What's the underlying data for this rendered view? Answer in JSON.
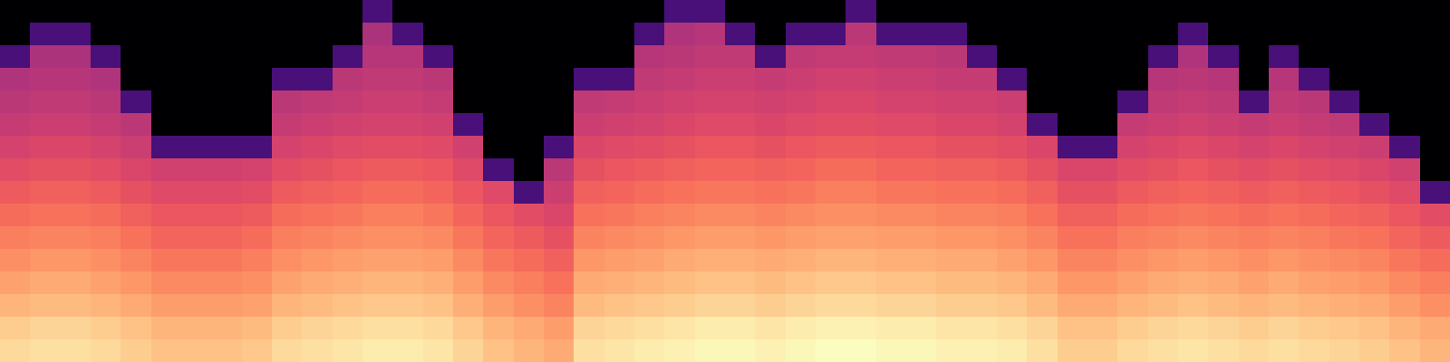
{
  "chart_data": {
    "type": "heatmap",
    "color": "magma",
    "tick_labels": false,
    "cells": [
      [
        -80,
        -80,
        -80,
        -80,
        -80,
        -80,
        -80,
        -80,
        -80,
        -80,
        -80,
        -80,
        -62,
        -80,
        -80,
        -80,
        -80,
        -80,
        -80,
        -80,
        -80,
        -80,
        -62,
        -62,
        -80,
        -80,
        -80,
        -80,
        -62,
        -80,
        -80,
        -80,
        -80,
        -80,
        -80,
        -80,
        -80,
        -80,
        -80,
        -80,
        -80,
        -80,
        -80,
        -80,
        -80,
        -80,
        -80,
        -80
      ],
      [
        -80,
        -62,
        -62,
        -80,
        -80,
        -80,
        -80,
        -80,
        -80,
        -80,
        -80,
        -80,
        -43,
        -62,
        -80,
        -80,
        -80,
        -80,
        -80,
        -80,
        -80,
        -62,
        -42,
        -41,
        -62,
        -80,
        -62,
        -62,
        -40,
        -62,
        -62,
        -62,
        -80,
        -80,
        -80,
        -80,
        -80,
        -80,
        -80,
        -62,
        -80,
        -80,
        -80,
        -80,
        -80,
        -80,
        -80,
        -80
      ],
      [
        -62,
        -43,
        -43,
        -62,
        -80,
        -80,
        -80,
        -80,
        -80,
        -80,
        -80,
        -62,
        -41,
        -41,
        -62,
        -80,
        -80,
        -80,
        -80,
        -80,
        -80,
        -41,
        -40,
        -39,
        -39,
        -62,
        -39,
        -38,
        -38,
        -39,
        -39,
        -40,
        -62,
        -80,
        -80,
        -80,
        -80,
        -80,
        -62,
        -42,
        -62,
        -80,
        -62,
        -80,
        -80,
        -80,
        -80,
        -80
      ],
      [
        -42,
        -41,
        -41,
        -42,
        -80,
        -80,
        -80,
        -80,
        -80,
        -62,
        -62,
        -40,
        -39,
        -39,
        -40,
        -80,
        -80,
        -80,
        -80,
        -62,
        -62,
        -39,
        -38,
        -37,
        -37,
        -38,
        -37,
        -36,
        -36,
        -37,
        -37,
        -38,
        -38,
        -62,
        -80,
        -80,
        -80,
        -80,
        -41,
        -40,
        -41,
        -80,
        -41,
        -62,
        -80,
        -80,
        -80,
        -80
      ],
      [
        -40,
        -39,
        -39,
        -40,
        -62,
        -80,
        -80,
        -80,
        -80,
        -40,
        -39,
        -38,
        -37,
        -37,
        -38,
        -80,
        -80,
        -80,
        -80,
        -39,
        -38,
        -37,
        -36,
        -35,
        -35,
        -36,
        -35,
        -34,
        -34,
        -35,
        -35,
        -36,
        -36,
        -37,
        -80,
        -80,
        -80,
        -62,
        -39,
        -38,
        -39,
        -62,
        -39,
        -40,
        -62,
        -80,
        -80,
        -80
      ],
      [
        -38,
        -37,
        -37,
        -38,
        -40,
        -80,
        -80,
        -80,
        -80,
        -38,
        -37,
        -36,
        -35,
        -35,
        -36,
        -62,
        -80,
        -80,
        -80,
        -37,
        -36,
        -35,
        -34,
        -33,
        -33,
        -34,
        -33,
        -32,
        -32,
        -33,
        -33,
        -34,
        -34,
        -35,
        -62,
        -80,
        -80,
        -38,
        -37,
        -36,
        -37,
        -38,
        -37,
        -38,
        -39,
        -62,
        -80,
        -80
      ],
      [
        -35,
        -34,
        -34,
        -35,
        -37,
        -62,
        -62,
        -62,
        -62,
        -35,
        -34,
        -33,
        -32,
        -32,
        -33,
        -36,
        -80,
        -80,
        -62,
        -34,
        -33,
        -32,
        -31,
        -30,
        -30,
        -31,
        -30,
        -29,
        -29,
        -30,
        -30,
        -31,
        -31,
        -32,
        -34,
        -62,
        -62,
        -35,
        -34,
        -33,
        -34,
        -35,
        -34,
        -35,
        -36,
        -37,
        -62,
        -80
      ],
      [
        -32,
        -31,
        -31,
        -32,
        -34,
        -36,
        -36,
        -36,
        -35,
        -32,
        -31,
        -30,
        -29,
        -29,
        -30,
        -33,
        -62,
        -80,
        -40,
        -31,
        -30,
        -29,
        -28,
        -27,
        -27,
        -28,
        -27,
        -26,
        -26,
        -27,
        -27,
        -28,
        -28,
        -29,
        -31,
        -34,
        -34,
        -32,
        -31,
        -30,
        -31,
        -32,
        -31,
        -32,
        -33,
        -34,
        -36,
        -80
      ],
      [
        -29,
        -28,
        -28,
        -29,
        -31,
        -33,
        -33,
        -33,
        -32,
        -29,
        -28,
        -27,
        -26,
        -26,
        -27,
        -30,
        -33,
        -62,
        -37,
        -28,
        -27,
        -26,
        -25,
        -24,
        -24,
        -25,
        -24,
        -23,
        -23,
        -24,
        -24,
        -25,
        -25,
        -26,
        -28,
        -31,
        -31,
        -29,
        -28,
        -27,
        -28,
        -29,
        -28,
        -29,
        -30,
        -31,
        -33,
        -62
      ],
      [
        -26,
        -25,
        -25,
        -26,
        -28,
        -30,
        -30,
        -30,
        -29,
        -26,
        -25,
        -24,
        -23,
        -23,
        -24,
        -27,
        -30,
        -32,
        -34,
        -25,
        -24,
        -23,
        -22,
        -21,
        -21,
        -22,
        -21,
        -20,
        -20,
        -21,
        -21,
        -22,
        -22,
        -23,
        -25,
        -28,
        -28,
        -26,
        -25,
        -24,
        -25,
        -26,
        -25,
        -26,
        -27,
        -28,
        -30,
        -32
      ],
      [
        -23,
        -22,
        -22,
        -23,
        -25,
        -27,
        -27,
        -27,
        -26,
        -23,
        -22,
        -21,
        -20,
        -20,
        -21,
        -24,
        -27,
        -29,
        -31,
        -22,
        -21,
        -20,
        -19,
        -18,
        -18,
        -19,
        -18,
        -17,
        -17,
        -18,
        -18,
        -19,
        -19,
        -20,
        -22,
        -25,
        -25,
        -23,
        -22,
        -21,
        -22,
        -23,
        -22,
        -23,
        -24,
        -25,
        -27,
        -29
      ],
      [
        -20,
        -19,
        -19,
        -20,
        -22,
        -24,
        -24,
        -24,
        -23,
        -20,
        -19,
        -18,
        -17,
        -17,
        -18,
        -21,
        -24,
        -26,
        -28,
        -19,
        -18,
        -17,
        -16,
        -15,
        -15,
        -16,
        -15,
        -14,
        -14,
        -15,
        -15,
        -16,
        -16,
        -17,
        -19,
        -22,
        -22,
        -20,
        -19,
        -18,
        -19,
        -20,
        -19,
        -20,
        -21,
        -22,
        -24,
        -26
      ],
      [
        -17,
        -16,
        -16,
        -17,
        -19,
        -21,
        -21,
        -21,
        -20,
        -17,
        -16,
        -15,
        -14,
        -14,
        -15,
        -18,
        -21,
        -23,
        -25,
        -16,
        -15,
        -14,
        -13,
        -12,
        -12,
        -13,
        -12,
        -11,
        -11,
        -12,
        -12,
        -13,
        -13,
        -14,
        -16,
        -19,
        -19,
        -17,
        -16,
        -15,
        -16,
        -17,
        -16,
        -17,
        -18,
        -19,
        -21,
        -23
      ],
      [
        -14,
        -13,
        -13,
        -14,
        -16,
        -18,
        -18,
        -18,
        -17,
        -14,
        -13,
        -12,
        -11,
        -11,
        -12,
        -15,
        -18,
        -20,
        -22,
        -13,
        -12,
        -11,
        -10,
        -9,
        -9,
        -10,
        -9,
        -8,
        -8,
        -9,
        -9,
        -10,
        -10,
        -11,
        -13,
        -16,
        -16,
        -14,
        -13,
        -12,
        -13,
        -14,
        -13,
        -14,
        -15,
        -16,
        -18,
        -20
      ],
      [
        -10,
        -9,
        -9,
        -10,
        -12,
        -14,
        -14,
        -14,
        -13,
        -10,
        -9,
        -8,
        -7,
        -7,
        -8,
        -11,
        -14,
        -16,
        -18,
        -9,
        -8,
        -7,
        -6,
        -5,
        -5,
        -6,
        -5,
        -4,
        -4,
        -5,
        -5,
        -6,
        -6,
        -7,
        -9,
        -12,
        -12,
        -10,
        -9,
        -8,
        -9,
        -10,
        -9,
        -10,
        -11,
        -12,
        -14,
        -16
      ],
      [
        -8,
        -7,
        -7,
        -8,
        -10,
        -12,
        -12,
        -12,
        -11,
        -8,
        -7,
        -6,
        -5,
        -5,
        -6,
        -9,
        -12,
        -14,
        -16,
        -7,
        -6,
        -5,
        -4,
        -3,
        -3,
        -4,
        -3,
        -2,
        -2,
        -3,
        -3,
        -4,
        -4,
        -5,
        -7,
        -10,
        -10,
        -8,
        -7,
        -6,
        -7,
        -8,
        -7,
        -8,
        -9,
        -10,
        -12,
        -14
      ]
    ]
  }
}
